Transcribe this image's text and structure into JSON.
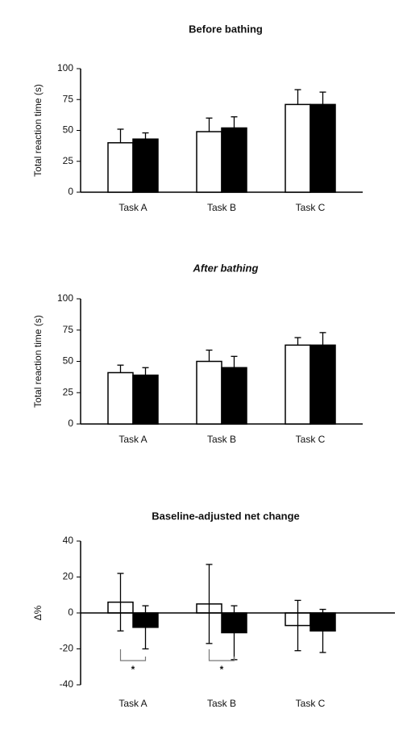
{
  "chart_data": [
    {
      "type": "bar",
      "title": "Before bathing",
      "title_style": "normal",
      "ylabel": "Total reaction time (s)",
      "categories": [
        "Task A",
        "Task B",
        "Task C"
      ],
      "series": [
        {
          "color": "#ffffff",
          "values": [
            40,
            49,
            71
          ],
          "errors": [
            11,
            11,
            12
          ]
        },
        {
          "color": "#000000",
          "values": [
            43,
            52,
            71
          ],
          "errors": [
            5,
            9,
            10
          ]
        }
      ],
      "error_direction": "up",
      "ylim": [
        0,
        100
      ],
      "yticks": [
        0,
        25,
        50,
        75,
        100
      ]
    },
    {
      "type": "bar",
      "title": "After bathing",
      "title_style": "italic-first",
      "ylabel": "Total reaction time (s)",
      "categories": [
        "Task A",
        "Task B",
        "Task C"
      ],
      "series": [
        {
          "color": "#ffffff",
          "values": [
            41,
            50,
            63
          ],
          "errors": [
            6,
            9,
            6
          ]
        },
        {
          "color": "#000000",
          "values": [
            39,
            45,
            63
          ],
          "errors": [
            6,
            9,
            10
          ]
        }
      ],
      "error_direction": "up",
      "ylim": [
        0,
        100
      ],
      "yticks": [
        0,
        25,
        50,
        75,
        100
      ]
    },
    {
      "type": "bar",
      "title": "Baseline-adjusted net change",
      "title_style": "normal",
      "ylabel": "Δ%",
      "categories": [
        "Task A",
        "Task B",
        "Task C"
      ],
      "series": [
        {
          "color": "#ffffff",
          "values": [
            6,
            5,
            -7
          ],
          "errors": [
            16,
            22,
            14
          ]
        },
        {
          "color": "#000000",
          "values": [
            -8,
            -11,
            -10
          ],
          "errors": [
            12,
            15,
            12
          ]
        }
      ],
      "error_direction": "both",
      "annotations": [
        {
          "text": "*",
          "category": "Task A"
        },
        {
          "text": "*",
          "category": "Task B"
        }
      ],
      "ylim": [
        -40,
        40
      ],
      "yticks": [
        -40,
        -20,
        0,
        20,
        40
      ]
    }
  ]
}
